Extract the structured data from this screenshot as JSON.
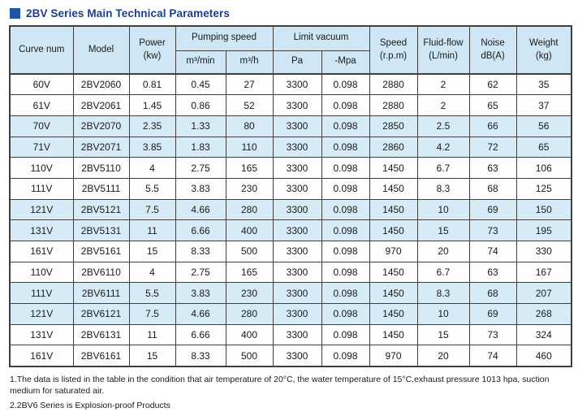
{
  "title": "2BV Series Main Technical Parameters",
  "colors": {
    "title_color": "#1b3d8b",
    "bullet_color": "#1e55a5",
    "header_bg": "#cfe7f4",
    "row_alt_bg": "#d7ebf7",
    "row_bg": "#fdfdfd",
    "border_color": "#3f3f3f",
    "text_color": "#1a1a1a"
  },
  "table": {
    "header": {
      "curve_num": "Curve num",
      "model": "Model",
      "power_line1": "Power",
      "power_line2": "(kw)",
      "pumping_speed": "Pumping speed",
      "pumping_sub_m3min": "m³/min",
      "pumping_sub_m3h": "m³/h",
      "limit_vacuum": "Limit vacuum",
      "limit_sub_pa": "Pa",
      "limit_sub_mpa": "-Mpa",
      "speed_line1": "Speed",
      "speed_line2": "(r.p.m)",
      "fluid_line1": "Fluid-flow",
      "fluid_line2": "(L/min)",
      "noise_line1": "Noise",
      "noise_line2": "dB(A)",
      "weight_line1": "Weight",
      "weight_line2": "(kg)"
    },
    "rows": [
      [
        "60V",
        "2BV2060",
        "0.81",
        "0.45",
        "27",
        "3300",
        "0.098",
        "2880",
        "2",
        "62",
        "35"
      ],
      [
        "61V",
        "2BV2061",
        "1.45",
        "0.86",
        "52",
        "3300",
        "0.098",
        "2880",
        "2",
        "65",
        "37"
      ],
      [
        "70V",
        "2BV2070",
        "2.35",
        "1.33",
        "80",
        "3300",
        "0.098",
        "2850",
        "2.5",
        "66",
        "56"
      ],
      [
        "71V",
        "2BV2071",
        "3.85",
        "1.83",
        "110",
        "3300",
        "0.098",
        "2860",
        "4.2",
        "72",
        "65"
      ],
      [
        "110V",
        "2BV5110",
        "4",
        "2.75",
        "165",
        "3300",
        "0.098",
        "1450",
        "6.7",
        "63",
        "106"
      ],
      [
        "111V",
        "2BV5111",
        "5.5",
        "3.83",
        "230",
        "3300",
        "0.098",
        "1450",
        "8.3",
        "68",
        "125"
      ],
      [
        "121V",
        "2BV5121",
        "7.5",
        "4.66",
        "280",
        "3300",
        "0.098",
        "1450",
        "10",
        "69",
        "150"
      ],
      [
        "131V",
        "2BV5131",
        "11",
        "6.66",
        "400",
        "3300",
        "0.098",
        "1450",
        "15",
        "73",
        "195"
      ],
      [
        "161V",
        "2BV5161",
        "15",
        "8.33",
        "500",
        "3300",
        "0.098",
        "970",
        "20",
        "74",
        "330"
      ],
      [
        "110V",
        "2BV6110",
        "4",
        "2.75",
        "165",
        "3300",
        "0.098",
        "1450",
        "6.7",
        "63",
        "167"
      ],
      [
        "111V",
        "2BV6111",
        "5.5",
        "3.83",
        "230",
        "3300",
        "0.098",
        "1450",
        "8.3",
        "68",
        "207"
      ],
      [
        "121V",
        "2BV6121",
        "7.5",
        "4.66",
        "280",
        "3300",
        "0.098",
        "1450",
        "10",
        "69",
        "268"
      ],
      [
        "131V",
        "2BV6131",
        "11",
        "6.66",
        "400",
        "3300",
        "0.098",
        "1450",
        "15",
        "73",
        "324"
      ],
      [
        "161V",
        "2BV6161",
        "15",
        "8.33",
        "500",
        "3300",
        "0.098",
        "970",
        "20",
        "74",
        "460"
      ]
    ]
  },
  "notes": [
    "1.The data is listed in the table in the condition that air temperature of 20°C, the water temperature of 15°C,exhaust pressure  1013 hpa, suction medium for saturated air.",
    "2.2BV6 Series is Explosion-proof Products"
  ]
}
